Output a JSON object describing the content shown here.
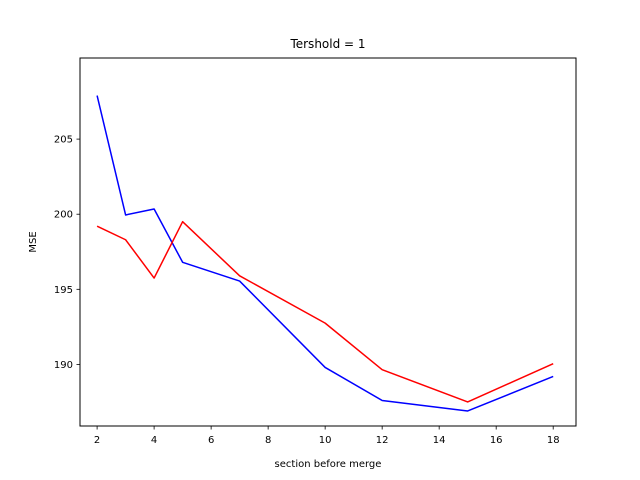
{
  "chart_data": {
    "type": "line",
    "title": "Tershold = 1",
    "xlabel": "section before merge",
    "ylabel": "MSE",
    "xlim": [
      1.4,
      18.8
    ],
    "ylim": [
      185.9,
      210.4
    ],
    "xticks": [
      2,
      4,
      6,
      8,
      10,
      12,
      14,
      16,
      18
    ],
    "yticks": [
      190,
      195,
      200,
      205
    ],
    "grid": false,
    "legend": "none",
    "series": [
      {
        "color": "#0000ff",
        "x": [
          2,
          3,
          4,
          5,
          7,
          10,
          12,
          15,
          18
        ],
        "y": [
          207.9,
          199.95,
          200.35,
          196.8,
          195.55,
          189.8,
          187.6,
          186.9,
          189.2
        ]
      },
      {
        "color": "#ff0000",
        "x": [
          2,
          3,
          4,
          5,
          7,
          10,
          12,
          15,
          18
        ],
        "y": [
          199.2,
          198.3,
          195.75,
          199.5,
          195.9,
          192.75,
          189.65,
          187.5,
          190.05
        ]
      }
    ]
  }
}
